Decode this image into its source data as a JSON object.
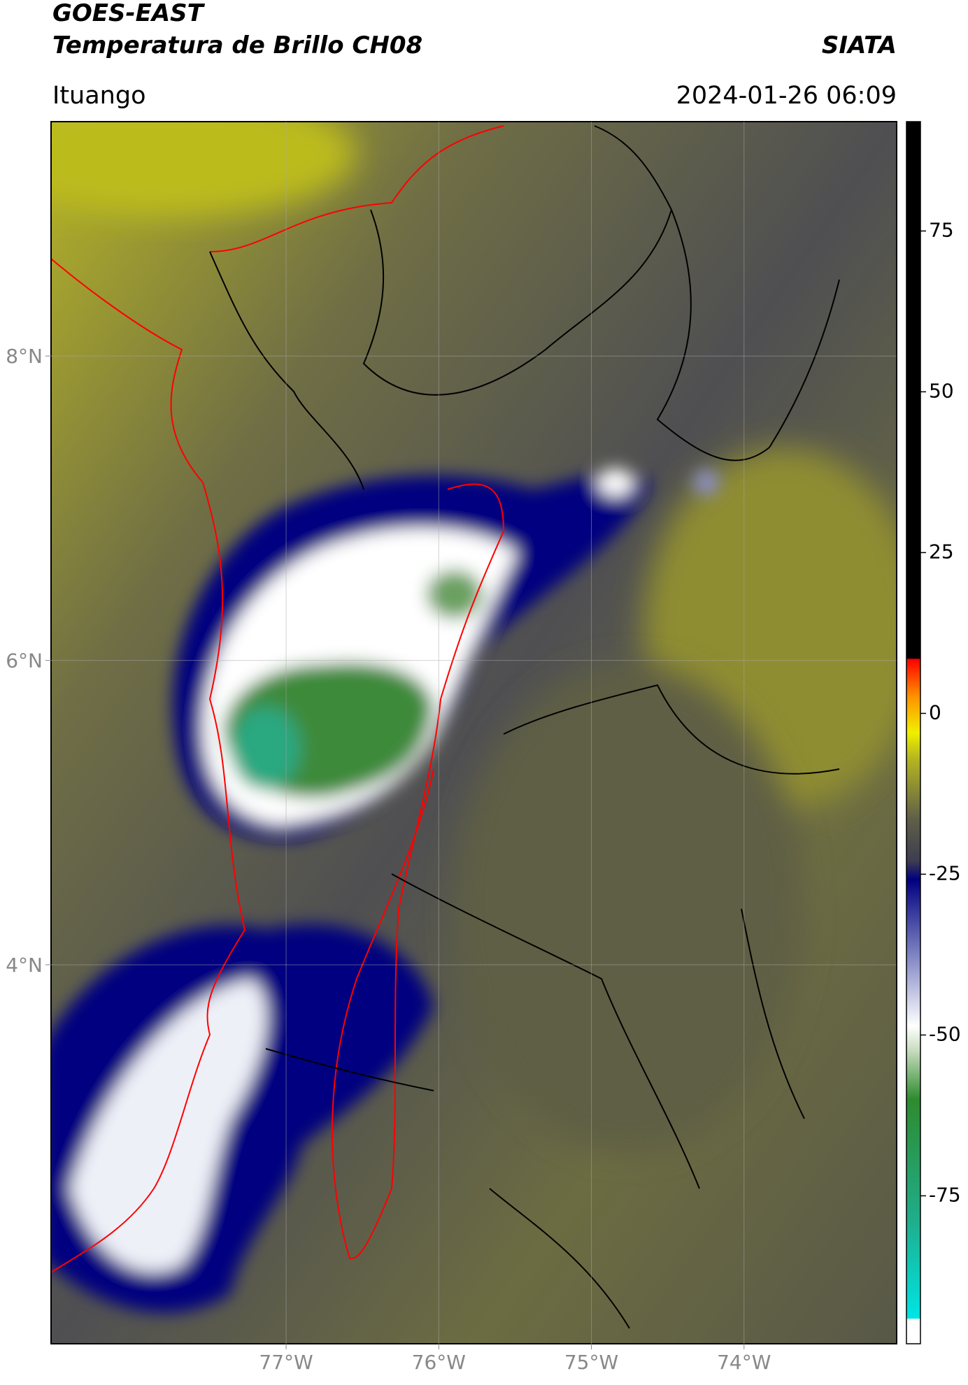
{
  "header": {
    "title": "GOES-EAST",
    "subtitle": "Temperatura de Brillo CH08",
    "source": "SIATA",
    "location": "Ituango",
    "datetime": "2024-01-26 06:09"
  },
  "map": {
    "lonlim": [
      -78.54,
      -73.0
    ],
    "latlim": [
      1.51,
      9.54
    ],
    "lon_ticks": [
      {
        "value": -77,
        "label": "77°W"
      },
      {
        "value": -76,
        "label": "76°W"
      },
      {
        "value": -75,
        "label": "75°W"
      },
      {
        "value": -74,
        "label": "74°W"
      }
    ],
    "lat_ticks": [
      {
        "value": 8,
        "label": "8°N"
      },
      {
        "value": 6,
        "label": "6°N"
      },
      {
        "value": 4,
        "label": "4°N"
      }
    ],
    "grid": true
  },
  "colorbar": {
    "range": [
      -98,
      92
    ],
    "ticks": [
      75,
      50,
      25,
      0,
      -25,
      -50,
      -75
    ]
  }
}
